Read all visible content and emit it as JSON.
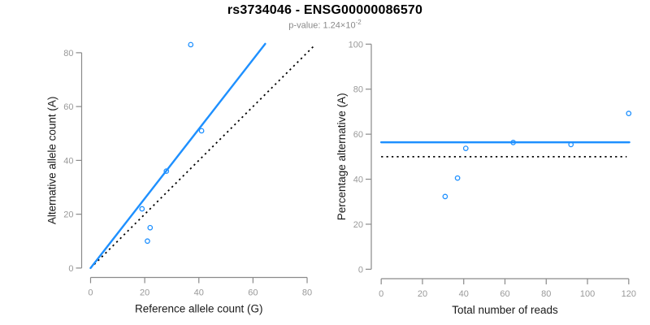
{
  "header": {
    "title": "rs3734046 - ENSG00000086570",
    "pvalue_prefix": "p-value: 1.24×10",
    "pvalue_exponent": "-2"
  },
  "colors": {
    "accent_blue": "#1E90FF",
    "axis_gray": "#8a8a8a",
    "tick_label_gray": "#999999",
    "axis_title_dark": "#1a1a1a",
    "dotted_black": "#000000",
    "subtitle_gray": "#8a8a8a"
  },
  "chart_data": [
    {
      "type": "scatter",
      "xlabel": "Reference allele count (G)",
      "ylabel": "Alternative allele count (A)",
      "xticks": [
        0,
        20,
        40,
        60,
        80
      ],
      "yticks": [
        0,
        20,
        40,
        60,
        80
      ],
      "xlim": [
        -3.3,
        86.3
      ],
      "ylim": [
        -3.5,
        87
      ],
      "grid": false,
      "points": [
        [
          19,
          22
        ],
        [
          21,
          10
        ],
        [
          22,
          15
        ],
        [
          28,
          36
        ],
        [
          37,
          83
        ],
        [
          41,
          51
        ]
      ],
      "fit_line": {
        "style": "solid",
        "x": [
          0,
          64.5
        ],
        "y": [
          0,
          83.3
        ],
        "slope": 1.29
      },
      "identity_line": {
        "style": "dotted",
        "x": [
          0,
          83
        ],
        "y": [
          0,
          83
        ],
        "slope": 1
      }
    },
    {
      "type": "scatter",
      "xlabel": "Total number of reads",
      "ylabel": "Percentage alternative (A)",
      "xticks": [
        0,
        20,
        40,
        60,
        80,
        100,
        120
      ],
      "yticks": [
        0,
        20,
        40,
        60,
        80,
        100
      ],
      "xlim": [
        -4.8,
        124.8
      ],
      "ylim": [
        -4.2,
        104.2
      ],
      "grid": false,
      "points": [
        [
          31,
          32.3
        ],
        [
          37,
          40.5
        ],
        [
          41,
          53.7
        ],
        [
          64,
          56.3
        ],
        [
          92,
          55.4
        ],
        [
          120,
          69.2
        ]
      ],
      "fit_line": {
        "style": "solid",
        "x": [
          0,
          120.3
        ],
        "y": [
          56.4,
          56.4
        ],
        "value": 56.4
      },
      "identity_line": {
        "style": "dotted",
        "x": [
          0,
          119
        ],
        "y": [
          50,
          50
        ],
        "value": 50
      }
    }
  ]
}
